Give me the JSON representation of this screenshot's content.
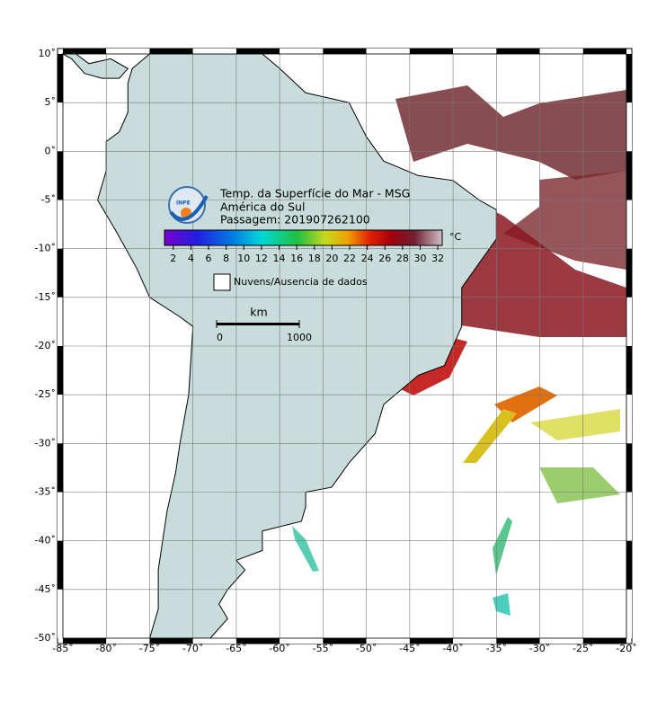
{
  "map": {
    "title": "Temp. da Superfície do Mar - MSG",
    "region": "América do Sul",
    "pass": "Passagem: 201907262100",
    "logo": "INPE",
    "unit": "°C",
    "colorbar_lim": [
      1,
      32.5
    ],
    "colorbar_ticks": [
      2,
      4,
      6,
      8,
      10,
      12,
      14,
      16,
      18,
      20,
      22,
      24,
      26,
      28,
      30,
      32
    ],
    "legend": "Nuvens/Ausencia de dados",
    "scale_unit": "km",
    "scale_ticks": [
      0,
      1000
    ],
    "lonlim": [
      -85,
      -20
    ],
    "latlim": [
      -50,
      10
    ],
    "lon_ticks": [
      {
        "value": -85,
        "label": "-85˚"
      },
      {
        "value": -80,
        "label": "-80˚"
      },
      {
        "value": -75,
        "label": "-75˚"
      },
      {
        "value": -70,
        "label": "-70˚"
      },
      {
        "value": -65,
        "label": "-65˚"
      },
      {
        "value": -60,
        "label": "-60˚"
      },
      {
        "value": -55,
        "label": "-55˚"
      },
      {
        "value": -50,
        "label": "-50˚"
      },
      {
        "value": -45,
        "label": "-45˚"
      },
      {
        "value": -40,
        "label": "-40˚"
      },
      {
        "value": -35,
        "label": "-35˚"
      },
      {
        "value": -30,
        "label": "-30˚"
      },
      {
        "value": -25,
        "label": "-25˚"
      },
      {
        "value": -20,
        "label": "-20˚"
      }
    ],
    "lat_ticks": [
      {
        "value": 10,
        "label": "10˚"
      },
      {
        "value": 5,
        "label": "5˚"
      },
      {
        "value": 0,
        "label": "0˚"
      },
      {
        "value": -5,
        "label": "-5˚"
      },
      {
        "value": -10,
        "label": "-10˚"
      },
      {
        "value": -15,
        "label": "-15˚"
      },
      {
        "value": -20,
        "label": "-20˚"
      },
      {
        "value": -25,
        "label": "-25˚"
      },
      {
        "value": -30,
        "label": "-30˚"
      },
      {
        "value": -35,
        "label": "-35˚"
      },
      {
        "value": -40,
        "label": "-40˚"
      },
      {
        "value": -45,
        "label": "-45˚"
      },
      {
        "value": -50,
        "label": "-50˚"
      }
    ]
  }
}
